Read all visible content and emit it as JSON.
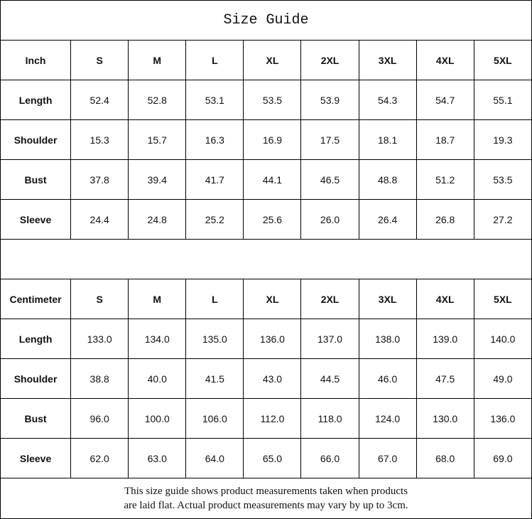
{
  "title": "Size Guide",
  "sizes": [
    "S",
    "M",
    "L",
    "XL",
    "2XL",
    "3XL",
    "4XL",
    "5XL"
  ],
  "tables": [
    {
      "unit": "Inch",
      "rows": [
        {
          "label": "Length",
          "values": [
            "52.4",
            "52.8",
            "53.1",
            "53.5",
            "53.9",
            "54.3",
            "54.7",
            "55.1"
          ]
        },
        {
          "label": "Shoulder",
          "values": [
            "15.3",
            "15.7",
            "16.3",
            "16.9",
            "17.5",
            "18.1",
            "18.7",
            "19.3"
          ]
        },
        {
          "label": "Bust",
          "values": [
            "37.8",
            "39.4",
            "41.7",
            "44.1",
            "46.5",
            "48.8",
            "51.2",
            "53.5"
          ]
        },
        {
          "label": "Sleeve",
          "values": [
            "24.4",
            "24.8",
            "25.2",
            "25.6",
            "26.0",
            "26.4",
            "26.8",
            "27.2"
          ]
        }
      ]
    },
    {
      "unit": "Centimeter",
      "rows": [
        {
          "label": "Length",
          "values": [
            "133.0",
            "134.0",
            "135.0",
            "136.0",
            "137.0",
            "138.0",
            "139.0",
            "140.0"
          ]
        },
        {
          "label": "Shoulder",
          "values": [
            "38.8",
            "40.0",
            "41.5",
            "43.0",
            "44.5",
            "46.0",
            "47.5",
            "49.0"
          ]
        },
        {
          "label": "Bust",
          "values": [
            "96.0",
            "100.0",
            "106.0",
            "112.0",
            "118.0",
            "124.0",
            "130.0",
            "136.0"
          ]
        },
        {
          "label": "Sleeve",
          "values": [
            "62.0",
            "63.0",
            "64.0",
            "65.0",
            "66.0",
            "67.0",
            "68.0",
            "69.0"
          ]
        }
      ]
    }
  ],
  "note": {
    "line1": "This size guide shows product measurements taken when products",
    "line2": "are laid flat. Actual product measurements may vary by up to 3cm."
  }
}
